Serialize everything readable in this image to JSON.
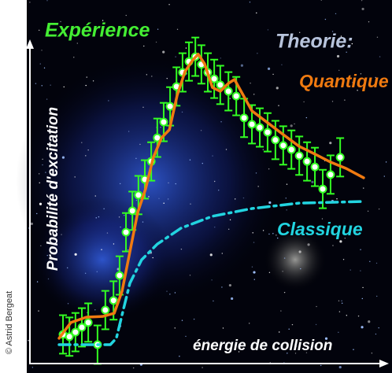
{
  "chart_data": {
    "type": "line",
    "title": "Expérience",
    "subtitle": "Theorie:",
    "x_label": "énergie de collision",
    "y_label": "Probabilité d'excitation",
    "credit": "© Astrid Bergeat",
    "xlim": [
      0,
      100
    ],
    "ylim": [
      0,
      100
    ],
    "series": [
      {
        "name": "Expérience",
        "color": "#33ff22",
        "mark": "points",
        "x": [
          9.3,
          11.1,
          12.8,
          14.6,
          16.4,
          19.0,
          21.2,
          23.5,
          25.2,
          27.0,
          28.8,
          30.5,
          32.3,
          34.1,
          35.8,
          37.6,
          39.4,
          41.2,
          42.9,
          44.7,
          46.5,
          48.2,
          50.0,
          51.8,
          53.5,
          55.8,
          58.0,
          60.2,
          62.4,
          64.6,
          66.8,
          69.0,
          71.2,
          73.5,
          75.7,
          77.9,
          80.1,
          82.3,
          84.5,
          87.2
        ],
        "values": [
          9.1,
          8.4,
          9.8,
          11.3,
          12.8,
          5.9,
          16.7,
          19.7,
          27.5,
          41.0,
          47.7,
          52.6,
          57.5,
          63.1,
          70.5,
          75.4,
          80.3,
          86.5,
          90.9,
          94.3,
          95.8,
          93.4,
          90.9,
          88.9,
          87.0,
          85.0,
          83.5,
          76.7,
          74.7,
          73.7,
          72.2,
          69.8,
          68.1,
          66.8,
          64.9,
          63.1,
          61.4,
          54.5,
          59.0,
          64.4
        ],
        "errors": [
          6,
          6,
          6,
          6,
          6,
          6,
          6,
          6,
          6,
          6,
          6,
          6,
          6,
          6,
          6,
          6,
          6,
          6,
          6,
          6,
          6,
          6,
          6,
          6,
          6,
          6,
          6,
          6,
          6,
          6,
          6,
          6,
          6,
          6,
          6,
          6,
          6,
          6,
          6,
          6
        ]
      },
      {
        "name": "Quantique",
        "color": "#f07a10",
        "mark": "solid",
        "x": [
          8.2,
          11.5,
          15.9,
          20.4,
          23.7,
          25.9,
          28.1,
          30.3,
          32.5,
          34.7,
          37.0,
          39.2,
          41.4,
          43.6,
          45.8,
          47.3,
          49.1,
          51.3,
          53.5,
          55.8,
          57.5,
          59.7,
          62.4,
          66.8,
          71.2,
          75.7,
          80.1,
          84.5,
          88.9,
          93.8
        ],
        "values": [
          7.9,
          12.8,
          14.5,
          14.7,
          15.7,
          22.6,
          34.9,
          47.2,
          54.5,
          64.4,
          70.5,
          73.0,
          83.8,
          91.2,
          94.8,
          96.6,
          93.6,
          86.2,
          85.0,
          87.5,
          88.7,
          84.3,
          78.9,
          75.2,
          71.5,
          67.8,
          65.4,
          62.9,
          60.9,
          58.0
        ]
      },
      {
        "name": "Classique",
        "color": "#22d4e0",
        "mark": "dashdot",
        "x": [
          8.2,
          22.6,
          24.3,
          25.9,
          28.1,
          31.4,
          35.8,
          42.5,
          51.3,
          62.4,
          75.7,
          93.8
        ],
        "values": [
          5.9,
          5.9,
          7.9,
          15.2,
          25.1,
          32.4,
          37.3,
          42.3,
          46.0,
          48.4,
          50.1,
          50.6
        ]
      }
    ]
  }
}
